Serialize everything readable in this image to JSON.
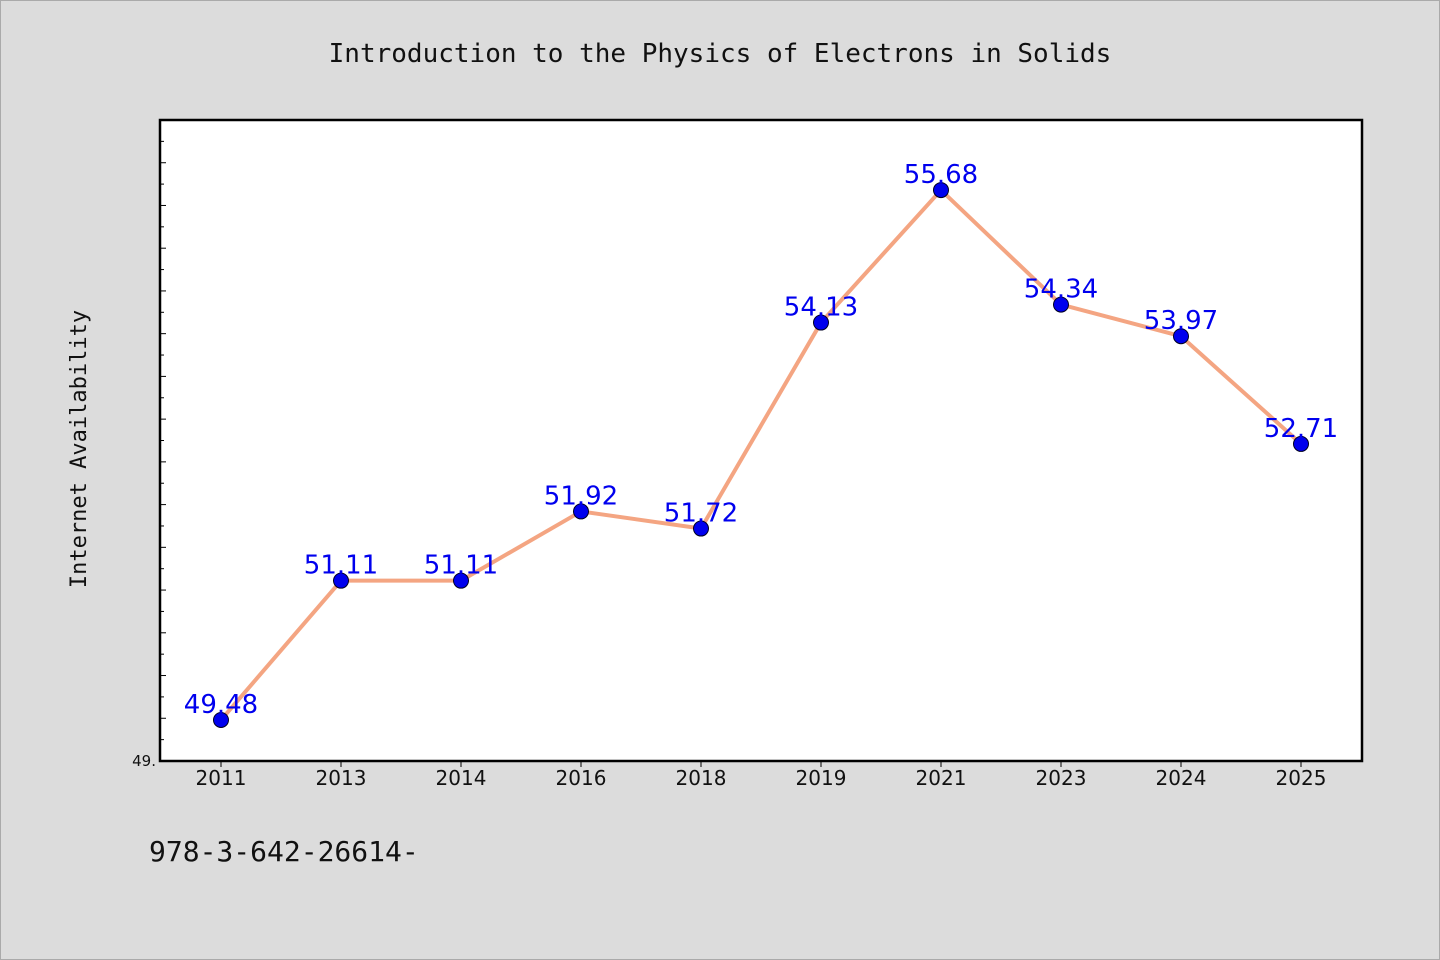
{
  "chart_data": {
    "type": "line",
    "title": "Introduction to the Physics of Electrons in Solids",
    "ylabel": "Internet Availability",
    "xlabel": "",
    "categories": [
      "2011",
      "2013",
      "2014",
      "2016",
      "2018",
      "2019",
      "2021",
      "2023",
      "2024",
      "2025"
    ],
    "series": [
      {
        "values": [
          49.48,
          51.11,
          51.11,
          51.92,
          51.72,
          54.13,
          55.68,
          54.34,
          53.97,
          52.71
        ],
        "labels": [
          "49.48",
          "51.11",
          "51.11",
          "51.92",
          "51.72",
          "54.13",
          "55.68",
          "54.34",
          "53.97",
          "52.71"
        ],
        "line_color": "#f4a582",
        "marker_color": "#0000ee",
        "label_color": "#0000ee"
      }
    ],
    "ylim": [
      49.0,
      56.5
    ],
    "y_tick_label": "49.",
    "grid": false,
    "legend": "none"
  },
  "footer_text": "978-3-642-26614-",
  "colors": {
    "background": "#dcdcdc",
    "plot_background": "#ffffff",
    "axis": "#000000"
  }
}
